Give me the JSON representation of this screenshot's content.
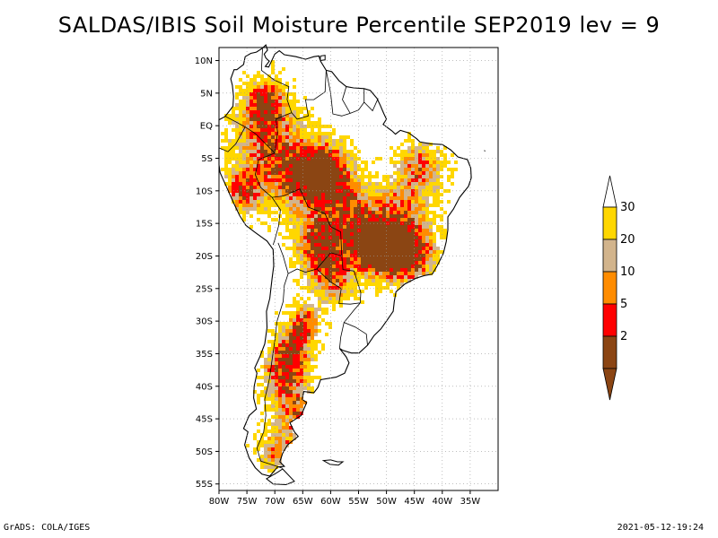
{
  "title": "SALDAS/IBIS Soil Moisture Percentile SEP2019 lev = 9",
  "map": {
    "lon_range": [
      -80,
      -30
    ],
    "lat_range": [
      -56,
      12
    ],
    "lat_ticks": [
      {
        "value": 10,
        "label": "10N"
      },
      {
        "value": 5,
        "label": "5N"
      },
      {
        "value": 0,
        "label": "EQ"
      },
      {
        "value": -5,
        "label": "5S"
      },
      {
        "value": -10,
        "label": "10S"
      },
      {
        "value": -15,
        "label": "15S"
      },
      {
        "value": -20,
        "label": "20S"
      },
      {
        "value": -25,
        "label": "25S"
      },
      {
        "value": -30,
        "label": "30S"
      },
      {
        "value": -35,
        "label": "35S"
      },
      {
        "value": -40,
        "label": "40S"
      },
      {
        "value": -45,
        "label": "45S"
      },
      {
        "value": -50,
        "label": "50S"
      },
      {
        "value": -55,
        "label": "55S"
      }
    ],
    "lon_ticks": [
      {
        "value": -80,
        "label": "80W"
      },
      {
        "value": -75,
        "label": "75W"
      },
      {
        "value": -70,
        "label": "70W"
      },
      {
        "value": -65,
        "label": "65W"
      },
      {
        "value": -60,
        "label": "60W"
      },
      {
        "value": -55,
        "label": "55W"
      },
      {
        "value": -50,
        "label": "50W"
      },
      {
        "value": -45,
        "label": "45W"
      },
      {
        "value": -40,
        "label": "40W"
      },
      {
        "value": -35,
        "label": "35W"
      }
    ],
    "grid": true
  },
  "colorbar": {
    "entries": [
      {
        "label": "2",
        "color": "#8b4513"
      },
      {
        "label": "5",
        "color": "#ff0000"
      },
      {
        "label": "10",
        "color": "#ff8c00"
      },
      {
        "label": "20",
        "color": "#d2b48c"
      },
      {
        "label": "30",
        "color": "#ffd700"
      }
    ],
    "top_color": "#ffffff",
    "bottom_color": "#8b4513"
  },
  "footer": {
    "left": "GrADS: COLA/IGES",
    "right": "2021-05-12-19:24"
  }
}
